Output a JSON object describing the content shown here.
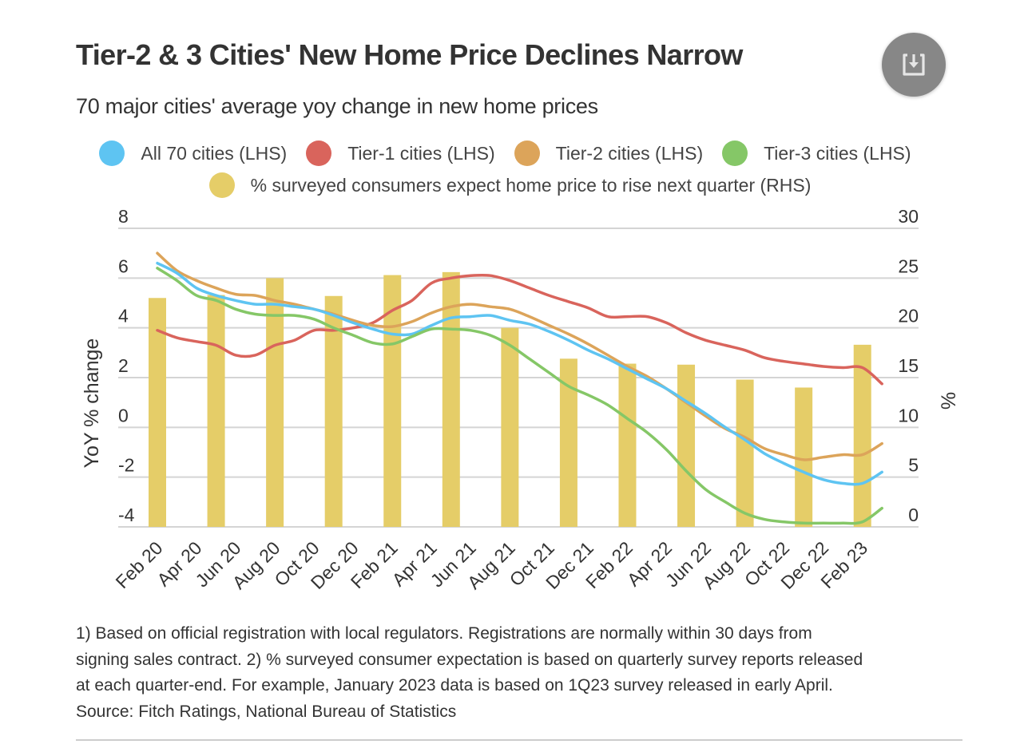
{
  "header": {
    "title": "Tier-2 & 3 Cities' New Home Price Declines Narrow",
    "subtitle": "70 major cities' average yoy change in new home prices",
    "download_icon": "download-icon"
  },
  "legend": [
    {
      "label": "All 70 cities (LHS)",
      "color": "#5ec4f2"
    },
    {
      "label": "Tier-1 cities (LHS)",
      "color": "#d9645c"
    },
    {
      "label": "Tier-2 cities (LHS)",
      "color": "#dca45a"
    },
    {
      "label": "Tier-3 cities (LHS)",
      "color": "#85c767"
    },
    {
      "label": "% surveyed consumers expect home price to rise next quarter (RHS)",
      "color": "#e5cd68"
    }
  ],
  "footnote": {
    "lines": [
      "1) Based on official registration with local regulators. Registrations are normally within 30 days from",
      "signing sales contract. 2) % surveyed consumer expectation is based on quarterly survey reports released",
      "at each quarter-end. For example, January 2023 data is based on 1Q23 survey released in early April.",
      "Source: Fitch Ratings, National Bureau of Statistics"
    ]
  },
  "chart_data": {
    "type": "line",
    "title": "Tier-2 & 3 Cities' New Home Price Declines Narrow",
    "subtitle": "70 major cities' average yoy change in new home prices",
    "ylabel": "YoY % change",
    "ylabel_right": "%",
    "ylim": [
      -4,
      8
    ],
    "yticks": [
      "8",
      "6",
      "4",
      "2",
      "0",
      "-2",
      "-4"
    ],
    "ylim_right": [
      0,
      30
    ],
    "yticks_right": [
      "30",
      "25",
      "20",
      "15",
      "10",
      "5",
      "0"
    ],
    "grid": true,
    "legend_position": "top",
    "xtick_labels": [
      "Feb 20",
      "Apr 20",
      "Jun 20",
      "Aug 20",
      "Oct 20",
      "Dec 20",
      "Feb 21",
      "Apr 21",
      "Jun 21",
      "Aug 21",
      "Oct 21",
      "Dec 21",
      "Feb 22",
      "Apr 22",
      "Jun 22",
      "Aug 22",
      "Oct 22",
      "Dec 22",
      "Feb 23"
    ],
    "x_months": [
      "Feb 20",
      "Mar 20",
      "Apr 20",
      "May 20",
      "Jun 20",
      "Jul 20",
      "Aug 20",
      "Sep 20",
      "Oct 20",
      "Nov 20",
      "Dec 20",
      "Jan 21",
      "Feb 21",
      "Mar 21",
      "Apr 21",
      "May 21",
      "Jun 21",
      "Jul 21",
      "Aug 21",
      "Sep 21",
      "Oct 21",
      "Nov 21",
      "Dec 21",
      "Jan 22",
      "Feb 22",
      "Mar 22",
      "Apr 22",
      "May 22",
      "Jun 22",
      "Jul 22",
      "Aug 22",
      "Sep 22",
      "Oct 22",
      "Nov 22",
      "Dec 22",
      "Jan 23",
      "Feb 23",
      "Mar 23"
    ],
    "series": [
      {
        "name": "All 70 cities (LHS)",
        "axis": "left",
        "kind": "line",
        "color": "#5ec4f2",
        "values": [
          6.6,
          6.2,
          5.6,
          5.3,
          5.1,
          4.95,
          4.95,
          4.85,
          4.75,
          4.5,
          4.2,
          3.95,
          3.75,
          3.75,
          4.1,
          4.4,
          4.45,
          4.5,
          4.3,
          4.15,
          3.85,
          3.5,
          3.1,
          2.75,
          2.35,
          1.95,
          1.55,
          1.05,
          0.55,
          0.0,
          -0.5,
          -1.05,
          -1.45,
          -1.8,
          -2.1,
          -2.25,
          -2.25,
          -1.8
        ]
      },
      {
        "name": "Tier-1 cities (LHS)",
        "axis": "left",
        "kind": "line",
        "color": "#d9645c",
        "values": [
          3.9,
          3.6,
          3.45,
          3.3,
          2.9,
          2.9,
          3.3,
          3.5,
          3.9,
          3.9,
          4.0,
          4.2,
          4.7,
          5.1,
          5.8,
          6.0,
          6.1,
          6.1,
          5.9,
          5.6,
          5.3,
          5.05,
          4.8,
          4.45,
          4.45,
          4.45,
          4.2,
          3.8,
          3.5,
          3.3,
          3.1,
          2.8,
          2.65,
          2.55,
          2.45,
          2.4,
          2.4,
          1.75
        ]
      },
      {
        "name": "Tier-2 cities (LHS)",
        "axis": "left",
        "kind": "line",
        "color": "#dca45a",
        "values": [
          7.0,
          6.3,
          5.9,
          5.6,
          5.35,
          5.3,
          5.1,
          4.95,
          4.75,
          4.55,
          4.3,
          4.1,
          4.05,
          4.25,
          4.6,
          4.85,
          4.95,
          4.85,
          4.75,
          4.45,
          4.1,
          3.75,
          3.35,
          2.9,
          2.45,
          2.05,
          1.55,
          1.0,
          0.45,
          -0.05,
          -0.4,
          -0.85,
          -1.1,
          -1.3,
          -1.2,
          -1.1,
          -1.1,
          -0.65
        ]
      },
      {
        "name": "Tier-3 cities (LHS)",
        "axis": "left",
        "kind": "line",
        "color": "#85c767",
        "values": [
          6.4,
          5.9,
          5.3,
          5.1,
          4.75,
          4.55,
          4.5,
          4.5,
          4.35,
          4.0,
          3.7,
          3.4,
          3.35,
          3.65,
          3.95,
          3.95,
          3.9,
          3.7,
          3.3,
          2.75,
          2.2,
          1.65,
          1.3,
          0.9,
          0.35,
          -0.2,
          -0.9,
          -1.75,
          -2.5,
          -3.0,
          -3.45,
          -3.7,
          -3.8,
          -3.85,
          -3.85,
          -3.85,
          -3.8,
          -3.25
        ]
      },
      {
        "name": "% surveyed consumers expect home price to rise next quarter (RHS)",
        "axis": "right",
        "kind": "bar",
        "color": "#e5cd68",
        "month_index": [
          0,
          3,
          6,
          9,
          12,
          15,
          18,
          21,
          24,
          27,
          30,
          33,
          36
        ],
        "values": [
          23.0,
          23.3,
          25.0,
          23.2,
          25.3,
          25.6,
          20.0,
          16.9,
          16.4,
          16.3,
          14.8,
          14.0,
          18.3
        ]
      }
    ]
  }
}
